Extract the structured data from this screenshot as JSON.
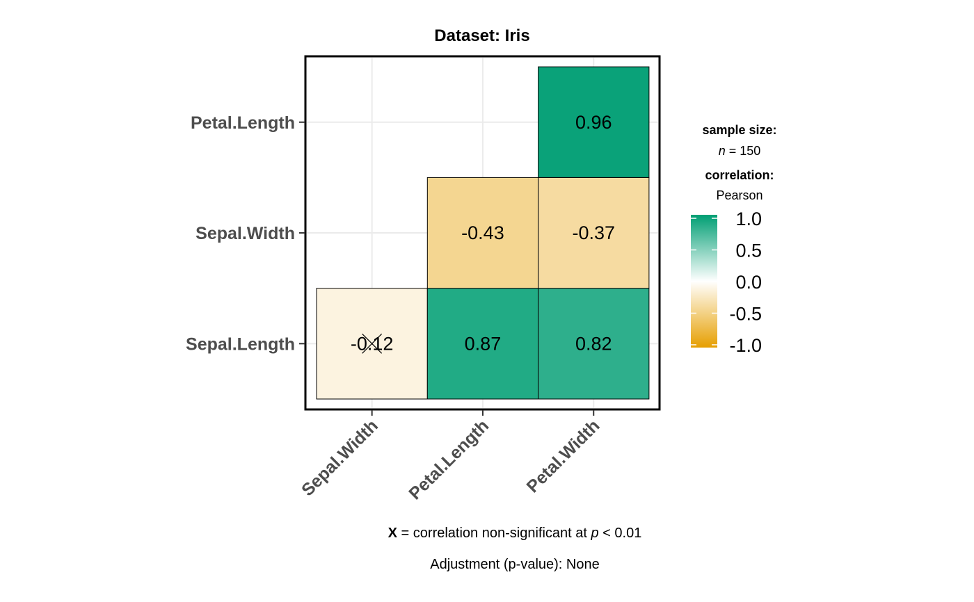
{
  "chart_data": {
    "type": "heatmap",
    "title": "Dataset: Iris",
    "rows": [
      "Sepal.Length",
      "Sepal.Width",
      "Petal.Length"
    ],
    "columns": [
      "Sepal.Width",
      "Petal.Length",
      "Petal.Width"
    ],
    "cells": [
      {
        "row": "Sepal.Length",
        "column": "Sepal.Width",
        "value": -0.12,
        "label": "-0.12",
        "nonsignificant": true
      },
      {
        "row": "Sepal.Length",
        "column": "Petal.Length",
        "value": 0.87,
        "label": "0.87",
        "nonsignificant": false
      },
      {
        "row": "Sepal.Length",
        "column": "Petal.Width",
        "value": 0.82,
        "label": "0.82",
        "nonsignificant": false
      },
      {
        "row": "Sepal.Width",
        "column": "Petal.Length",
        "value": -0.43,
        "label": "-0.43",
        "nonsignificant": false
      },
      {
        "row": "Sepal.Width",
        "column": "Petal.Width",
        "value": -0.37,
        "label": "-0.37",
        "nonsignificant": false
      },
      {
        "row": "Petal.Length",
        "column": "Petal.Width",
        "value": 0.96,
        "label": "0.96",
        "nonsignificant": false
      }
    ],
    "color_scale": {
      "low": "#E69F00",
      "mid": "#FFFFFF",
      "high": "#009E73",
      "range": [
        -1,
        1
      ]
    },
    "legend": {
      "sample_size_title": "sample size:",
      "n_symbol": "n",
      "n_text": " = 150",
      "correlation_title": "correlation:",
      "correlation_method": "Pearson",
      "ticks": [
        "1.0",
        "0.5",
        "0.0",
        "-0.5",
        "-1.0"
      ],
      "position": "right"
    },
    "caption": {
      "x_symbol": "X",
      "part1": " = correlation non-significant at ",
      "p_symbol": "p",
      "part2": " < 0.01",
      "adjustment": "Adjustment (p-value): None"
    },
    "grid": true
  }
}
